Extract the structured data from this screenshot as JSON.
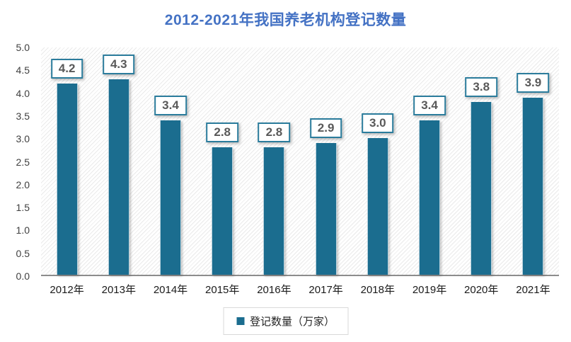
{
  "chart_data": {
    "type": "bar",
    "title": "2012-2021年我国养老机构登记数量",
    "categories": [
      "2012年",
      "2013年",
      "2014年",
      "2015年",
      "2016年",
      "2017年",
      "2018年",
      "2019年",
      "2020年",
      "2021年"
    ],
    "values": [
      4.2,
      4.3,
      3.4,
      2.8,
      2.8,
      2.9,
      3.0,
      3.4,
      3.8,
      3.9
    ],
    "value_labels": [
      "4.2",
      "4.3",
      "3.4",
      "2.8",
      "2.8",
      "2.9",
      "3.0",
      "3.4",
      "3.8",
      "3.9"
    ],
    "xlabel": "",
    "ylabel": "",
    "ylim": [
      0,
      5
    ],
    "y_ticks": [
      "5.0",
      "4.5",
      "4.0",
      "3.5",
      "3.0",
      "2.5",
      "2.0",
      "1.5",
      "1.0",
      "0.5",
      "0.0"
    ],
    "grid": "off",
    "plot_background": "diagonal-hatch",
    "legend": {
      "position": "bottom-center",
      "entries": [
        "登记数量（万家）"
      ]
    },
    "colors": {
      "bar": "#1b6d8f",
      "bar_label_border": "#2b7c9c",
      "bar_label_text": "#595959",
      "title": "#4472c4",
      "axis_text": "#404040",
      "x_axis_text": "#1a1a1a",
      "axis_line": "#8c8c8c",
      "legend_border": "#d9d9d9",
      "hatch_line": "#eaeaea"
    }
  }
}
